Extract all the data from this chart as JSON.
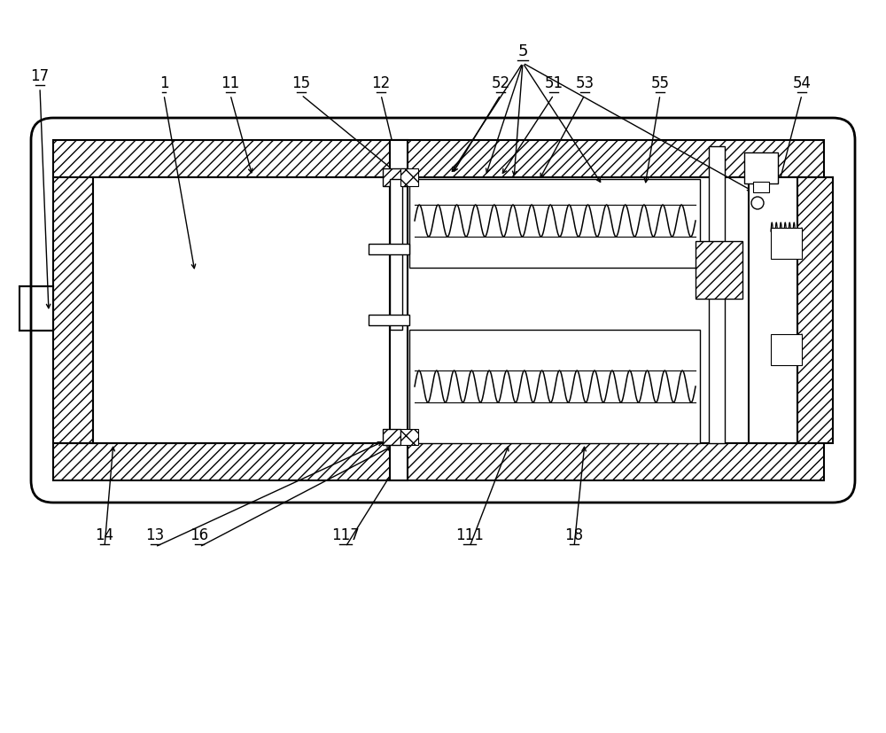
{
  "bg_color": "#ffffff",
  "line_color": "#000000",
  "figsize": [
    10.0,
    8.27
  ],
  "dpi": 100
}
